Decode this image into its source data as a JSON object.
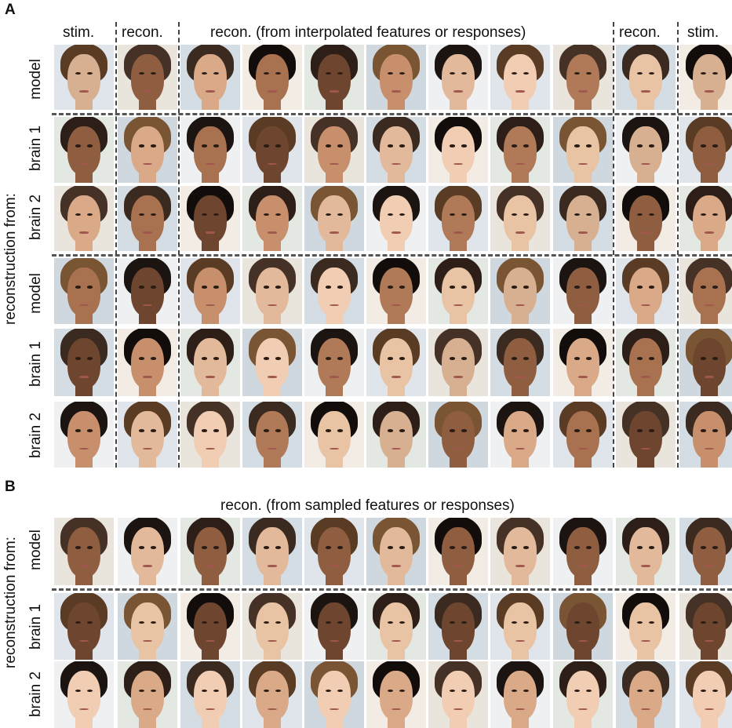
{
  "panel_a": {
    "letter": "A",
    "headers": {
      "stim_left": "stim.",
      "recon_left": "recon.",
      "recon_interp": "recon. (from interpolated features or responses)",
      "recon_right": "recon.",
      "stim_right": "stim."
    },
    "side_label": "reconstruction from:",
    "row_labels": [
      "model",
      "brain 1",
      "brain 2",
      "model",
      "brain 1",
      "brain 2"
    ]
  },
  "panel_b": {
    "letter": "B",
    "header": "recon. (from sampled features or responses)",
    "side_label": "reconstruction from:",
    "row_labels": [
      "model",
      "brain 1",
      "brain 2"
    ]
  },
  "colors": {
    "dash": "#555555",
    "text": "#111111"
  }
}
